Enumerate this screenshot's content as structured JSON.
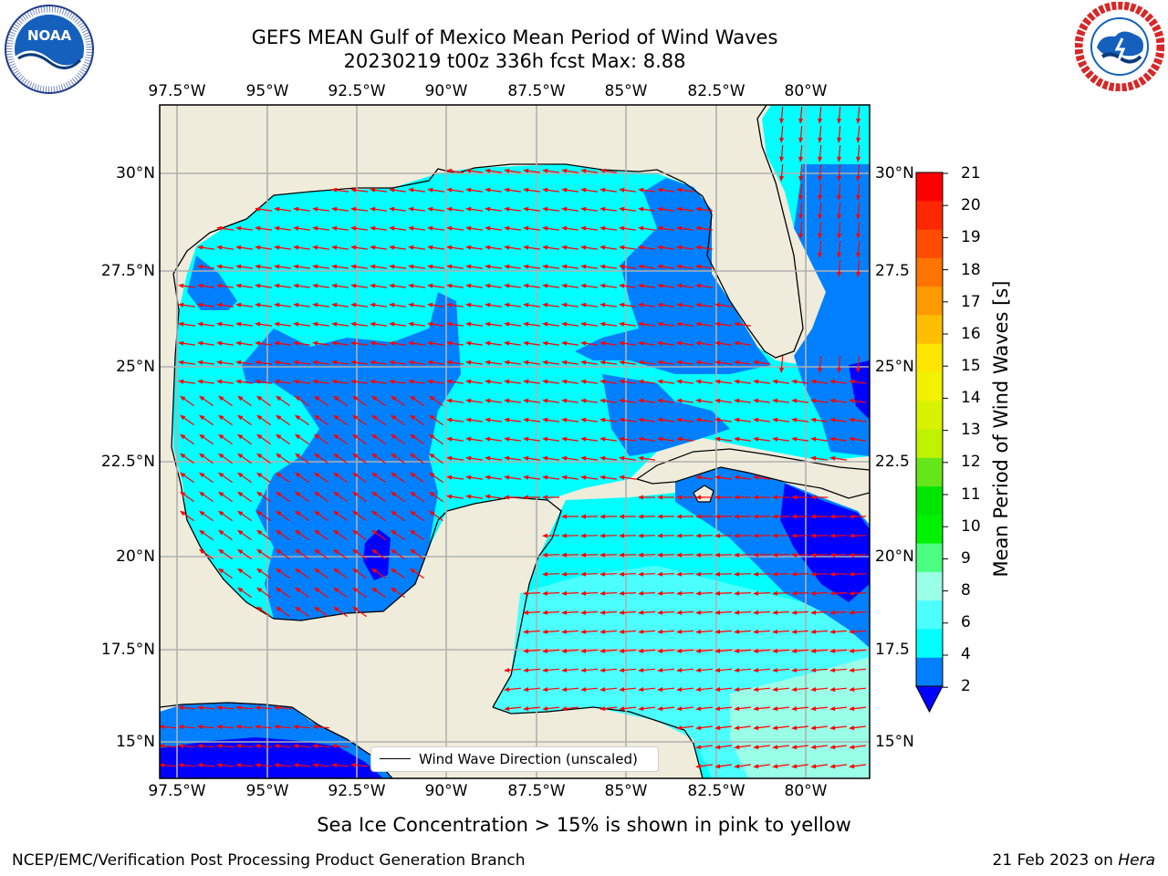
{
  "header": {
    "title_line1": "GEFS MEAN Gulf of Mexico Mean Period of Wind Waves",
    "title_line2": "20230219 t00z 336h fcst   Max: 8.88"
  },
  "logos": {
    "left": "NOAA",
    "left_ring": "NATIONAL OCEANIC AND ATMOSPHERIC ADMINISTRATION · U.S. DEPARTMENT OF COMMERCE",
    "right_ring": "NATIONAL WEATHER SERVICE"
  },
  "map": {
    "lon_labels": [
      "97.5°W",
      "95°W",
      "92.5°W",
      "90°W",
      "87.5°W",
      "85°W",
      "82.5°W",
      "80°W"
    ],
    "lat_labels": [
      "30°N",
      "27.5°N",
      "25°N",
      "22.5°N",
      "20°N",
      "17.5°N",
      "15°N"
    ],
    "lat_labels_right": [
      "30°N",
      "27.5",
      "25°N",
      "22.5",
      "20°N",
      "17.5",
      "15°N"
    ],
    "legend_text": "Wind Wave Direction (unscaled)",
    "colors": {
      "land": "#efecdc",
      "arrow": "#ff0000",
      "grid": "#b0b0b0",
      "coast": "#000000"
    }
  },
  "colorbar": {
    "label": "Mean Period of Wind Waves [s]",
    "ticks": [
      "21",
      "20",
      "19",
      "18",
      "17",
      "16",
      "15",
      "14",
      "13",
      "12",
      "11",
      "10",
      "9",
      "8",
      "6",
      "4",
      "2"
    ],
    "colors": [
      "#ff0000",
      "#ff2600",
      "#ff4c00",
      "#ff7300",
      "#ff9900",
      "#ffbf00",
      "#ffe600",
      "#f2f200",
      "#d9f200",
      "#bff200",
      "#66e619",
      "#00e600",
      "#00f200",
      "#4dff80",
      "#99ffe6",
      "#4cffff",
      "#00ffff",
      "#0080ff"
    ],
    "extend_color": "#0000ff"
  },
  "subtitle": "Sea Ice Concentration > 15% is shown in pink to yellow",
  "footer": {
    "left": "NCEP/EMC/Verification Post Processing Product Generation Branch",
    "right_date": "21 Feb 2023 on ",
    "right_host": "Hera"
  }
}
